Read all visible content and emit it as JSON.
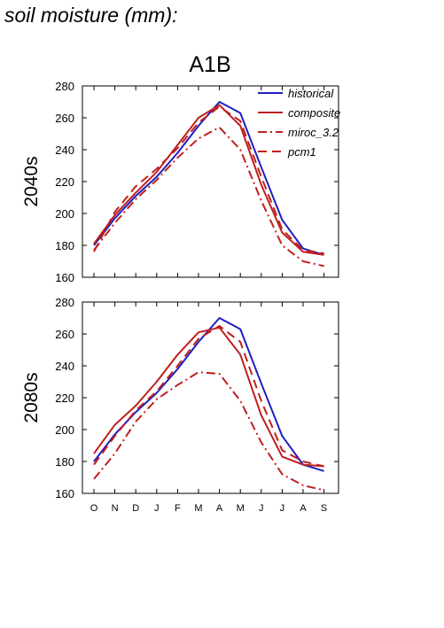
{
  "heading": "soil moisture (mm):",
  "colors": {
    "historical": "#1f1fbf",
    "model": "#bf1f1f",
    "axis": "#000000"
  },
  "chart_data": {
    "type": "line",
    "title": "A1B",
    "categories": [
      "O",
      "N",
      "D",
      "J",
      "F",
      "M",
      "A",
      "M",
      "J",
      "J",
      "A",
      "S"
    ],
    "legend": {
      "placement": "top-right",
      "entries": [
        "historical",
        "composite",
        "miroc_3.2",
        "pcm1"
      ]
    },
    "panels": [
      {
        "ylabel": "2040s",
        "ylim": [
          160,
          280
        ],
        "yticks": [
          160,
          180,
          200,
          220,
          240,
          260,
          280
        ],
        "series": [
          {
            "name": "historical",
            "style": "solid",
            "color": "#1f1fbf",
            "values": [
              180,
              197,
              211,
              223,
              238,
              255,
              270,
              263,
              229,
              196,
              178,
              174
            ]
          },
          {
            "name": "composite",
            "style": "solid",
            "color": "#bf1f1f",
            "values": [
              181,
              199,
              213,
              226,
              243,
              260,
              268,
              255,
              218,
              188,
              176,
              174
            ]
          },
          {
            "name": "miroc_3.2",
            "style": "dashdot",
            "color": "#bf1f1f",
            "values": [
              177,
              194,
              209,
              221,
              235,
              247,
              254,
              240,
              208,
              180,
              170,
              167
            ]
          },
          {
            "name": "pcm1",
            "style": "dashed",
            "color": "#bf1f1f",
            "values": [
              176,
              201,
              217,
              228,
              241,
              257,
              267,
              258,
              223,
              190,
              177,
              175
            ]
          }
        ]
      },
      {
        "ylabel": "2080s",
        "ylim": [
          160,
          280
        ],
        "yticks": [
          160,
          180,
          200,
          220,
          240,
          260,
          280
        ],
        "series": [
          {
            "name": "historical",
            "style": "solid",
            "color": "#1f1fbf",
            "values": [
              180,
              197,
              211,
              223,
              238,
              255,
              270,
              263,
              229,
              196,
              178,
              174
            ]
          },
          {
            "name": "composite",
            "style": "solid",
            "color": "#bf1f1f",
            "values": [
              185,
              203,
              215,
              230,
              247,
              261,
              264,
              247,
              209,
              183,
              178,
              177
            ]
          },
          {
            "name": "miroc_3.2",
            "style": "dashdot",
            "color": "#bf1f1f",
            "values": [
              169,
              185,
              205,
              219,
              228,
              236,
              235,
              218,
              192,
              172,
              165,
              162
            ]
          },
          {
            "name": "pcm1",
            "style": "dashed",
            "color": "#bf1f1f",
            "values": [
              178,
              196,
              212,
              224,
              240,
              257,
              265,
              255,
              218,
              187,
              180,
              177
            ]
          }
        ]
      }
    ]
  }
}
